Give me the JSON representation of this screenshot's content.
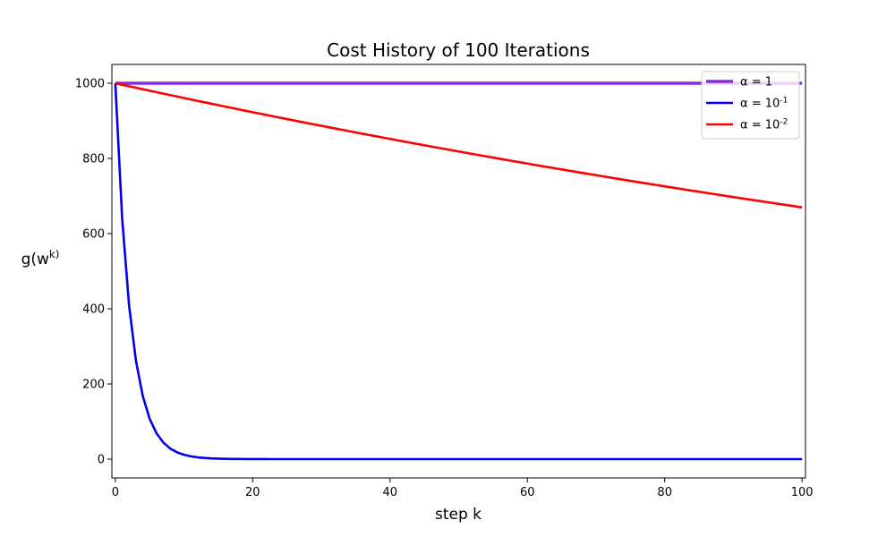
{
  "chart_data": {
    "type": "line",
    "title": "Cost History of 100 Iterations",
    "xlabel": "step k",
    "ylabel": "g(w^k)",
    "xlim": [
      -0.5,
      100.5
    ],
    "ylim": [
      -50,
      1050
    ],
    "xticks": [
      0,
      20,
      40,
      60,
      80,
      100
    ],
    "yticks": [
      0,
      200,
      400,
      600,
      800,
      1000
    ],
    "grid": false,
    "legend_position": "top-right",
    "series": [
      {
        "name": "α = 1",
        "color": "#8a2be2",
        "decay": 1.0,
        "x_start": 0,
        "x_end": 100,
        "y0": 1000
      },
      {
        "name": "α = 10^-1",
        "color": "#0000ee",
        "decay": 0.64,
        "x_start": 0,
        "x_end": 100,
        "y0": 1000
      },
      {
        "name": "α = 10^-2",
        "color": "#ff0000",
        "decay": 0.996,
        "x_start": 0,
        "x_end": 100,
        "y0": 1000
      }
    ]
  }
}
